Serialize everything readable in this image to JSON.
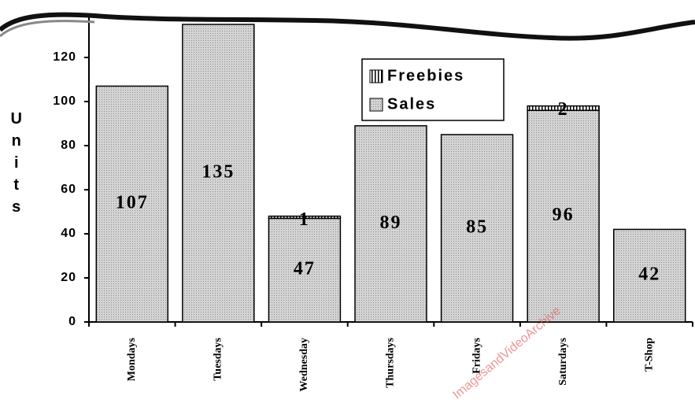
{
  "chart_data": {
    "type": "stacked_bar",
    "y_label": "Units",
    "categories": [
      "Mondays",
      "Tuesdays",
      "Wednesday",
      "Thursdays",
      "Fridays",
      "Saturdays",
      "T-Shop"
    ],
    "series": [
      {
        "name": "Sales",
        "color": "#c4c4c4",
        "values": [
          107,
          135,
          47,
          89,
          85,
          96,
          42
        ]
      },
      {
        "name": "Freebies",
        "color": "#ffffff",
        "values": [
          null,
          null,
          1,
          null,
          null,
          2,
          null
        ]
      }
    ],
    "ylim": [
      0,
      140
    ],
    "yticks": [
      0,
      20,
      40,
      60,
      80,
      100,
      120,
      140
    ],
    "legend": "upper-center",
    "watermark": "ImagesandVideoArchive"
  }
}
